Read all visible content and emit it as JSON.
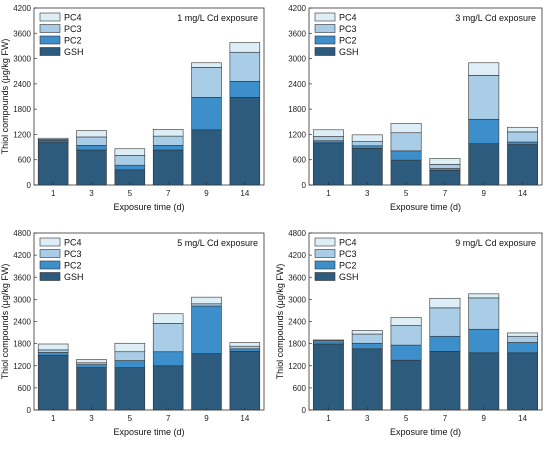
{
  "colors": {
    "GSH": "#2c5b7e",
    "PC2": "#3d8fcb",
    "PC3": "#a9cde6",
    "PC4": "#deeef7",
    "edge": "#333333"
  },
  "chart_data": [
    {
      "type": "bar",
      "stacked": true,
      "title": "1 mg/L Cd exposure",
      "xlabel": "Exposure time (d)",
      "ylabel": "Thiol compounds (μg/kg FW)",
      "ylim": [
        0,
        4200
      ],
      "yticks": [
        "0",
        "600",
        "1200",
        "1800",
        "2400",
        "3000",
        "3600",
        "4200"
      ],
      "categories": [
        "1",
        "3",
        "5",
        "7",
        "9",
        "14"
      ],
      "legend": [
        "PC4",
        "PC3",
        "PC2",
        "GSH"
      ],
      "series": [
        {
          "name": "GSH",
          "values": [
            1020,
            830,
            360,
            830,
            1310,
            2080
          ]
        },
        {
          "name": "PC2",
          "values": [
            40,
            110,
            110,
            110,
            770,
            380
          ]
        },
        {
          "name": "PC3",
          "values": [
            20,
            200,
            230,
            220,
            710,
            690
          ]
        },
        {
          "name": "PC4",
          "values": [
            30,
            150,
            160,
            160,
            110,
            230
          ]
        }
      ]
    },
    {
      "type": "bar",
      "stacked": true,
      "title": "3 mg/L Cd exposure",
      "xlabel": "Exposure time (d)",
      "ylabel": "",
      "ylim": [
        0,
        4200
      ],
      "yticks": [
        "0",
        "600",
        "1200",
        "1800",
        "2400",
        "3000",
        "3600",
        "4200"
      ],
      "categories": [
        "1",
        "3",
        "5",
        "7",
        "9",
        "14"
      ],
      "legend": [
        "PC4",
        "PC3",
        "PC2",
        "GSH"
      ],
      "series": [
        {
          "name": "GSH",
          "values": [
            1000,
            870,
            590,
            350,
            980,
            960
          ]
        },
        {
          "name": "PC2",
          "values": [
            50,
            60,
            220,
            40,
            580,
            60
          ]
        },
        {
          "name": "PC3",
          "values": [
            100,
            100,
            430,
            100,
            1040,
            240
          ]
        },
        {
          "name": "PC4",
          "values": [
            160,
            160,
            220,
            140,
            300,
            110
          ]
        }
      ]
    },
    {
      "type": "bar",
      "stacked": true,
      "title": "5 mg/L Cd exposure",
      "xlabel": "Exposure time (d)",
      "ylabel": "Thiol compounds (μg/kg FW)",
      "ylim": [
        0,
        4800
      ],
      "yticks": [
        "0",
        "600",
        "1200",
        "1800",
        "2400",
        "3000",
        "3600",
        "4200",
        "4800"
      ],
      "categories": [
        "1",
        "3",
        "5",
        "7",
        "9",
        "14"
      ],
      "legend": [
        "PC4",
        "PC3",
        "PC2",
        "GSH"
      ],
      "series": [
        {
          "name": "GSH",
          "values": [
            1480,
            1150,
            1150,
            1200,
            1530,
            1590
          ]
        },
        {
          "name": "PC2",
          "values": [
            80,
            80,
            190,
            380,
            1290,
            70
          ]
        },
        {
          "name": "PC3",
          "values": [
            70,
            50,
            240,
            770,
            60,
            70
          ]
        },
        {
          "name": "PC4",
          "values": [
            160,
            90,
            230,
            260,
            180,
            100
          ]
        }
      ]
    },
    {
      "type": "bar",
      "stacked": true,
      "title": "9 mg/L Cd exposure",
      "xlabel": "Exposure time (d)",
      "ylabel": "Thiol compounds (μg/kg FW)",
      "ylim": [
        0,
        4800
      ],
      "yticks": [
        "0",
        "600",
        "1200",
        "1800",
        "2400",
        "3000",
        "3600",
        "4200",
        "4800"
      ],
      "categories": [
        "1",
        "3",
        "5",
        "7",
        "9",
        "14"
      ],
      "legend": [
        "PC4",
        "PC3",
        "PC2",
        "GSH"
      ],
      "series": [
        {
          "name": "GSH",
          "values": [
            1790,
            1660,
            1350,
            1590,
            1550,
            1550
          ]
        },
        {
          "name": "PC2",
          "values": [
            60,
            150,
            410,
            410,
            640,
            280
          ]
        },
        {
          "name": "PC3",
          "values": [
            30,
            250,
            530,
            770,
            850,
            170
          ]
        },
        {
          "name": "PC4",
          "values": [
            20,
            100,
            220,
            260,
            110,
            90
          ]
        }
      ]
    }
  ]
}
